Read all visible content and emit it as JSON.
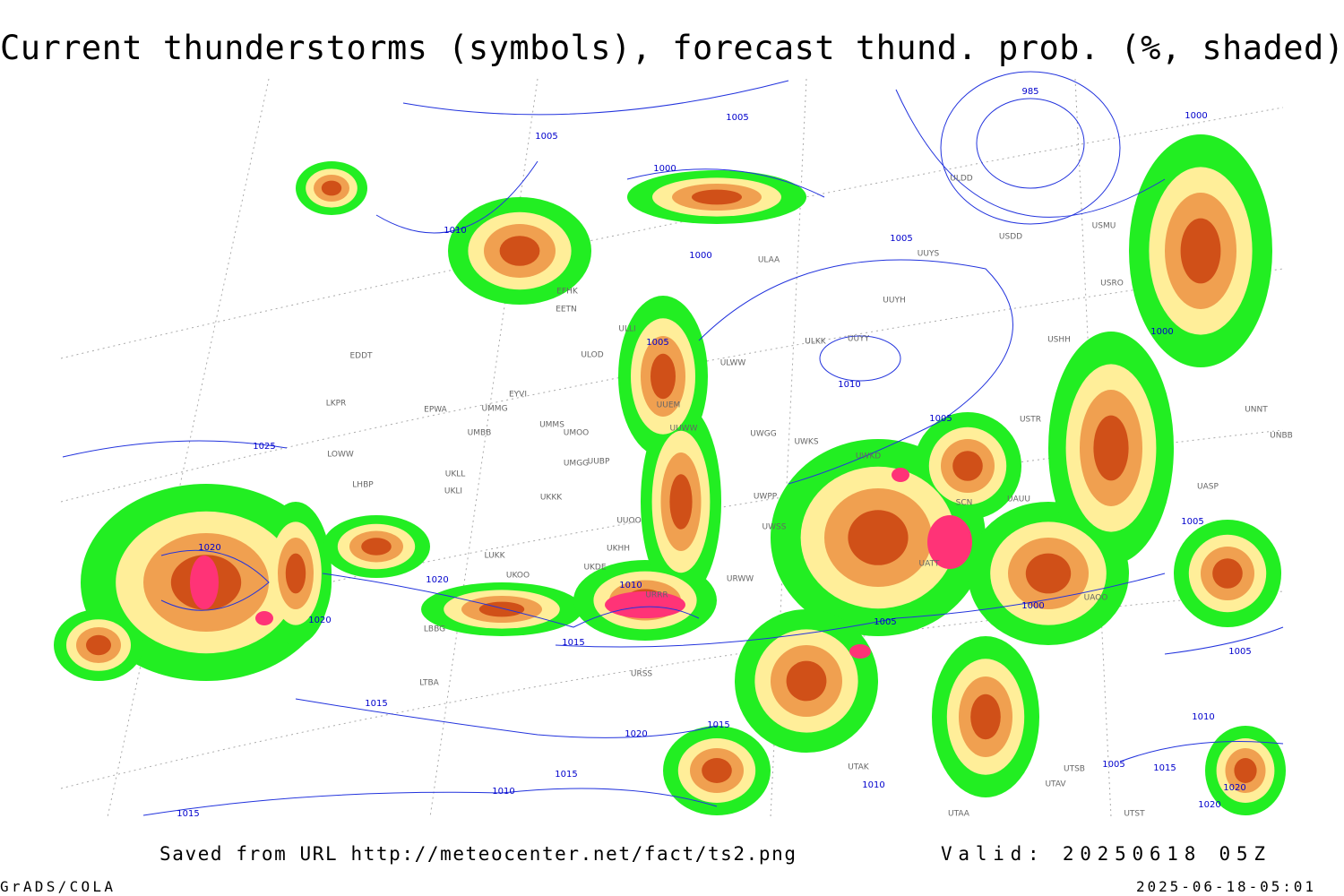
{
  "title": "Current thunderstorms (symbols), forecast thund. prob. (%, shaded)",
  "footer": {
    "source": "Saved from URL http://meteocenter.net/fact/ts2.png",
    "valid": "Valid: 20250618 05Z",
    "software": "GrADS/COLA",
    "timestamp": "2025-06-18-05:01"
  },
  "isobar_labels": [
    "985",
    "1005",
    "1005",
    "1000",
    "1000",
    "1010",
    "1005",
    "1000",
    "1005",
    "1000",
    "1010",
    "1005",
    "1025",
    "1020",
    "1020",
    "1010",
    "1005",
    "1020",
    "1005",
    "1000",
    "1015",
    "1005",
    "1015",
    "1015",
    "1020",
    "1010",
    "1005",
    "1015",
    "1015",
    "1010",
    "1010",
    "1020",
    "1020",
    "1015"
  ],
  "stations": [
    "ULDD",
    "USDD",
    "USMU",
    "ULAA",
    "UUYS",
    "UUYH",
    "USRO",
    "EFHK",
    "EETN",
    "ULLI",
    "ULOD",
    "ULKK",
    "UUYY",
    "ULWW",
    "USHH",
    "EDDT",
    "EYVI",
    "EPWA",
    "UMMG",
    "UMBB",
    "LKPR",
    "LOWW",
    "UMMS",
    "UMOO",
    "UUEM",
    "UUWW",
    "UWGG",
    "UWKS",
    "USTR",
    "UNNT",
    "UNBB",
    "LHBP",
    "UKLL",
    "UKLI",
    "UMGG",
    "UUBP",
    "UWKD",
    "UKKK",
    "SCN",
    "UAUU",
    "UASP",
    "UWPP",
    "UWSS",
    "UUOO",
    "LUKK",
    "UKOO",
    "UKDE",
    "UKHH",
    "URRR",
    "URWW",
    "UATT",
    "UAOO",
    "LBBG",
    "URSS",
    "LTBA",
    "UTAV",
    "UTSB",
    "UTST",
    "UTAA",
    "UTAK"
  ]
}
